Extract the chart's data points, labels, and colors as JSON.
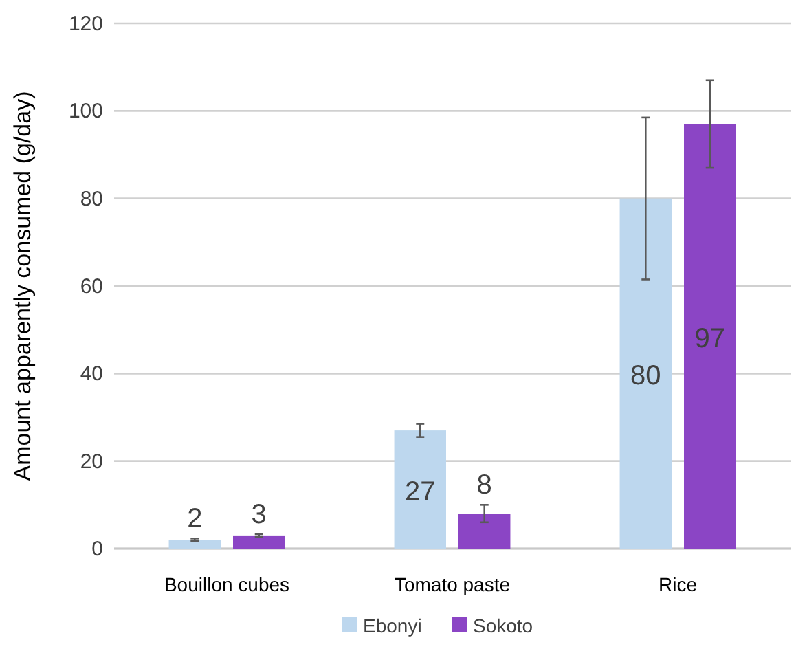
{
  "chart_data": {
    "type": "bar",
    "ylabel": "Amount apparently consumed (g/day)",
    "categories": [
      "Bouillon cubes",
      "Tomato paste",
      "Rice"
    ],
    "series": [
      {
        "name": "Ebonyi",
        "color": "#bdd7ee",
        "values": [
          2,
          27,
          80
        ],
        "errors": [
          0.3,
          1.5,
          18.5
        ]
      },
      {
        "name": "Sokoto",
        "color": "#8b45c5",
        "values": [
          3,
          8,
          97
        ],
        "errors": [
          0.3,
          2,
          10
        ]
      }
    ],
    "ylim": [
      0,
      120
    ],
    "yticks": [
      0,
      20,
      40,
      60,
      80,
      100,
      120
    ],
    "grid": "y",
    "legend": "bottom",
    "data_labels": true
  }
}
